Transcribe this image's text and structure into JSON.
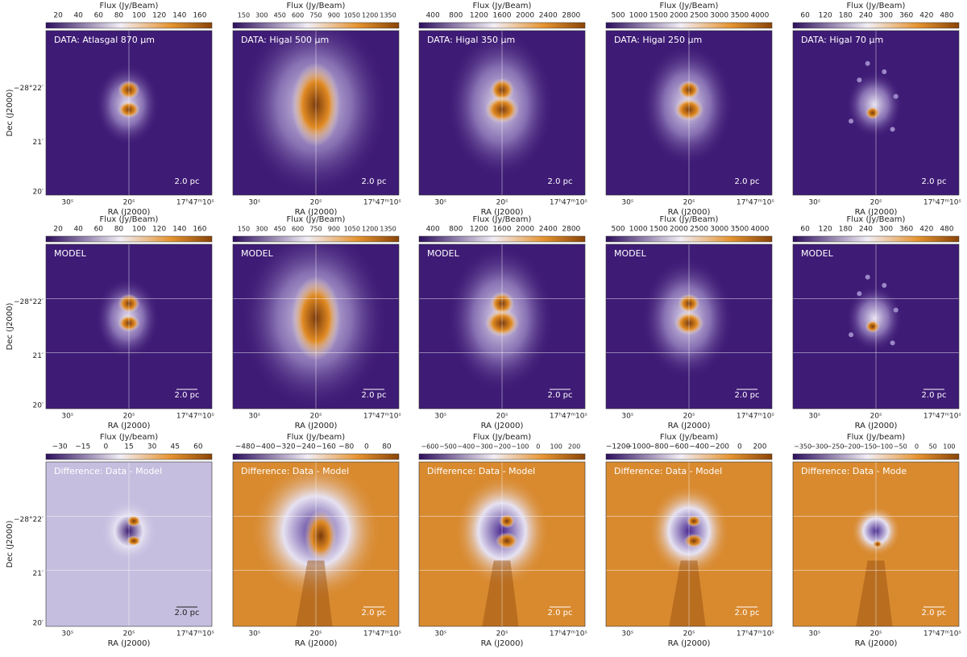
{
  "figure": {
    "rows": [
      {
        "colorbar_label": "Flux (Jy/Beam)",
        "panels": [
          {
            "label": "DATA: Atlasgal 870 μm",
            "colorbar_ticks": [
              "20",
              "40",
              "60",
              "80",
              "100",
              "120",
              "140",
              "160"
            ]
          },
          {
            "label": "DATA: Higal 500 μm",
            "colorbar_ticks": [
              "150",
              "300",
              "450",
              "600",
              "750",
              "900",
              "1050",
              "1200",
              "1350"
            ]
          },
          {
            "label": "DATA: Higal 350 μm",
            "colorbar_ticks": [
              "400",
              "800",
              "1200",
              "1600",
              "2000",
              "2400",
              "2800"
            ]
          },
          {
            "label": "DATA: Higal 250 μm",
            "colorbar_ticks": [
              "500",
              "1000",
              "1500",
              "2000",
              "2500",
              "3000",
              "3500",
              "4000"
            ]
          },
          {
            "label": "DATA: Higal 70 μm",
            "colorbar_ticks": [
              "60",
              "120",
              "180",
              "240",
              "300",
              "360",
              "420",
              "480"
            ]
          }
        ]
      },
      {
        "colorbar_label": "Flux (Jy/Beam)",
        "panels": [
          {
            "label": "MODEL",
            "colorbar_ticks": [
              "20",
              "40",
              "60",
              "80",
              "100",
              "120",
              "140",
              "160"
            ]
          },
          {
            "label": "MODEL",
            "colorbar_ticks": [
              "150",
              "300",
              "450",
              "600",
              "750",
              "900",
              "1050",
              "1200",
              "1350"
            ]
          },
          {
            "label": "MODEL",
            "colorbar_ticks": [
              "400",
              "800",
              "1200",
              "1600",
              "2000",
              "2400",
              "2800"
            ]
          },
          {
            "label": "MODEL",
            "colorbar_ticks": [
              "500",
              "1000",
              "1500",
              "2000",
              "2500",
              "3000",
              "3500",
              "4000"
            ]
          },
          {
            "label": "MODEL",
            "colorbar_ticks": [
              "60",
              "120",
              "180",
              "240",
              "300",
              "360",
              "420",
              "480"
            ]
          }
        ]
      },
      {
        "colorbar_label": "Flux (Jy/beam)",
        "panels": [
          {
            "label": "Difference: Data - Model",
            "colorbar_ticks": [
              "−30",
              "−15",
              "0",
              "15",
              "30",
              "45",
              "60"
            ]
          },
          {
            "label": "Difference: Data - Model",
            "colorbar_ticks": [
              "−480",
              "−400",
              "−320",
              "−240",
              "−160",
              "−80",
              "0",
              "80"
            ]
          },
          {
            "label": "Difference: Data - Model",
            "colorbar_ticks": [
              "−600",
              "−500",
              "−400",
              "−300",
              "−200",
              "−100",
              "0",
              "100",
              "200"
            ]
          },
          {
            "label": "Difference: Data - Model",
            "colorbar_ticks": [
              "−1200",
              "−1000",
              "−800",
              "−600",
              "−400",
              "−200",
              "0",
              "200"
            ]
          },
          {
            "label": "Difference: Data - Mode",
            "colorbar_ticks": [
              "−350",
              "−300",
              "−250",
              "−200",
              "−150",
              "−100",
              "−50",
              "0",
              "50",
              "100"
            ]
          }
        ]
      }
    ],
    "scalebar": "2.0 pc",
    "x_label": "RA (J2000)",
    "x_ticks": [
      "30ˢ",
      "20ˢ",
      "17ʰ47ᵐ10ˢ"
    ],
    "y_label": "Dec (J2000)",
    "y_ticks": [
      "−28°22′",
      "21′",
      "20′"
    ]
  }
}
